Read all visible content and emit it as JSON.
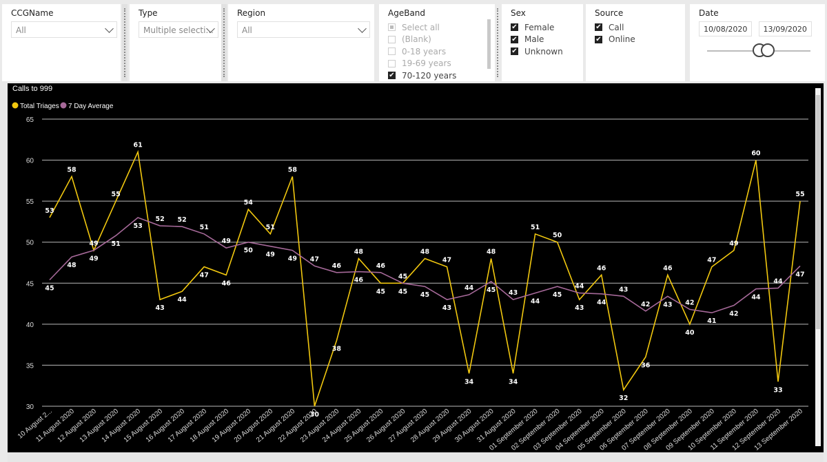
{
  "filters": {
    "ccg": {
      "title": "CCGName",
      "value": "All"
    },
    "type": {
      "title": "Type",
      "value": "Multiple selecti..."
    },
    "region": {
      "title": "Region",
      "value": "All"
    },
    "ageband": {
      "title": "AgeBand",
      "options": [
        {
          "label": "Select all",
          "state": "partial"
        },
        {
          "label": "(Blank)",
          "state": "unchecked"
        },
        {
          "label": "0-18 years",
          "state": "unchecked"
        },
        {
          "label": "19-69 years",
          "state": "unchecked"
        },
        {
          "label": "70-120 years",
          "state": "checked"
        }
      ]
    },
    "sex": {
      "title": "Sex",
      "options": [
        {
          "label": "Female",
          "state": "checked"
        },
        {
          "label": "Male",
          "state": "checked"
        },
        {
          "label": "Unknown",
          "state": "checked"
        }
      ]
    },
    "source": {
      "title": "Source",
      "options": [
        {
          "label": "Call",
          "state": "checked"
        },
        {
          "label": "Online",
          "state": "checked"
        }
      ]
    },
    "date": {
      "title": "Date",
      "start": "10/08/2020",
      "end": "13/09/2020"
    }
  },
  "chart_data": {
    "type": "line",
    "title": "Calls to 999",
    "legend_position": "top-left",
    "categories": [
      "10 August 2...",
      "11 August 2020",
      "12 August 2020",
      "13 August 2020",
      "14 August 2020",
      "15 August 2020",
      "16 August 2020",
      "17 August 2020",
      "18 August 2020",
      "19 August 2020",
      "20 August 2020",
      "21 August 2020",
      "22 August 2020",
      "23 August 2020",
      "24 August 2020",
      "25 August 2020",
      "26 August 2020",
      "27 August 2020",
      "28 August 2020",
      "29 August 2020",
      "30 August 2020",
      "31 August 2020",
      "01 September 2020",
      "02 September 2020",
      "03 September 2020",
      "04 September 2020",
      "05 September 2020",
      "06 September 2020",
      "07 September 2020",
      "08 September 2020",
      "09 September 2020",
      "10 September 2020",
      "11 September 2020",
      "12 September 2020",
      "13 September 2020"
    ],
    "series": [
      {
        "name": "Total Triages",
        "color": "#f2c80f",
        "values": [
          53,
          58,
          49,
          55,
          61,
          43,
          44,
          47,
          46,
          54,
          51,
          58,
          30,
          38,
          48,
          45,
          45,
          48,
          47,
          34,
          48,
          34,
          51,
          50,
          43,
          46,
          32,
          36,
          46,
          40,
          47,
          49,
          60,
          33,
          55
        ]
      },
      {
        "name": "7 Day Average",
        "color": "#a66999",
        "values": [
          45.4,
          48.2,
          49,
          50.8,
          53,
          52,
          51.9,
          51,
          49.3,
          50,
          49.5,
          49,
          47.1,
          46.3,
          46.4,
          46.3,
          45,
          44.6,
          43,
          43.6,
          45.2,
          43,
          43.8,
          44.6,
          43.8,
          43.7,
          43.4,
          41.6,
          43.4,
          41.8,
          41.4,
          42.3,
          44.3,
          44.4,
          47.1
        ]
      }
    ],
    "avg_labels": [
      45,
      48,
      49,
      51,
      53,
      52,
      52,
      51,
      49,
      50,
      49,
      49,
      47,
      46,
      46,
      46,
      45,
      45,
      43,
      44,
      45,
      43,
      44,
      45,
      44,
      44,
      43,
      42,
      43,
      42,
      41,
      42,
      44,
      44,
      47
    ],
    "y_ticks": [
      30,
      35,
      40,
      45,
      50,
      55,
      60,
      65
    ],
    "ylim": [
      30,
      65
    ],
    "grid": true
  }
}
